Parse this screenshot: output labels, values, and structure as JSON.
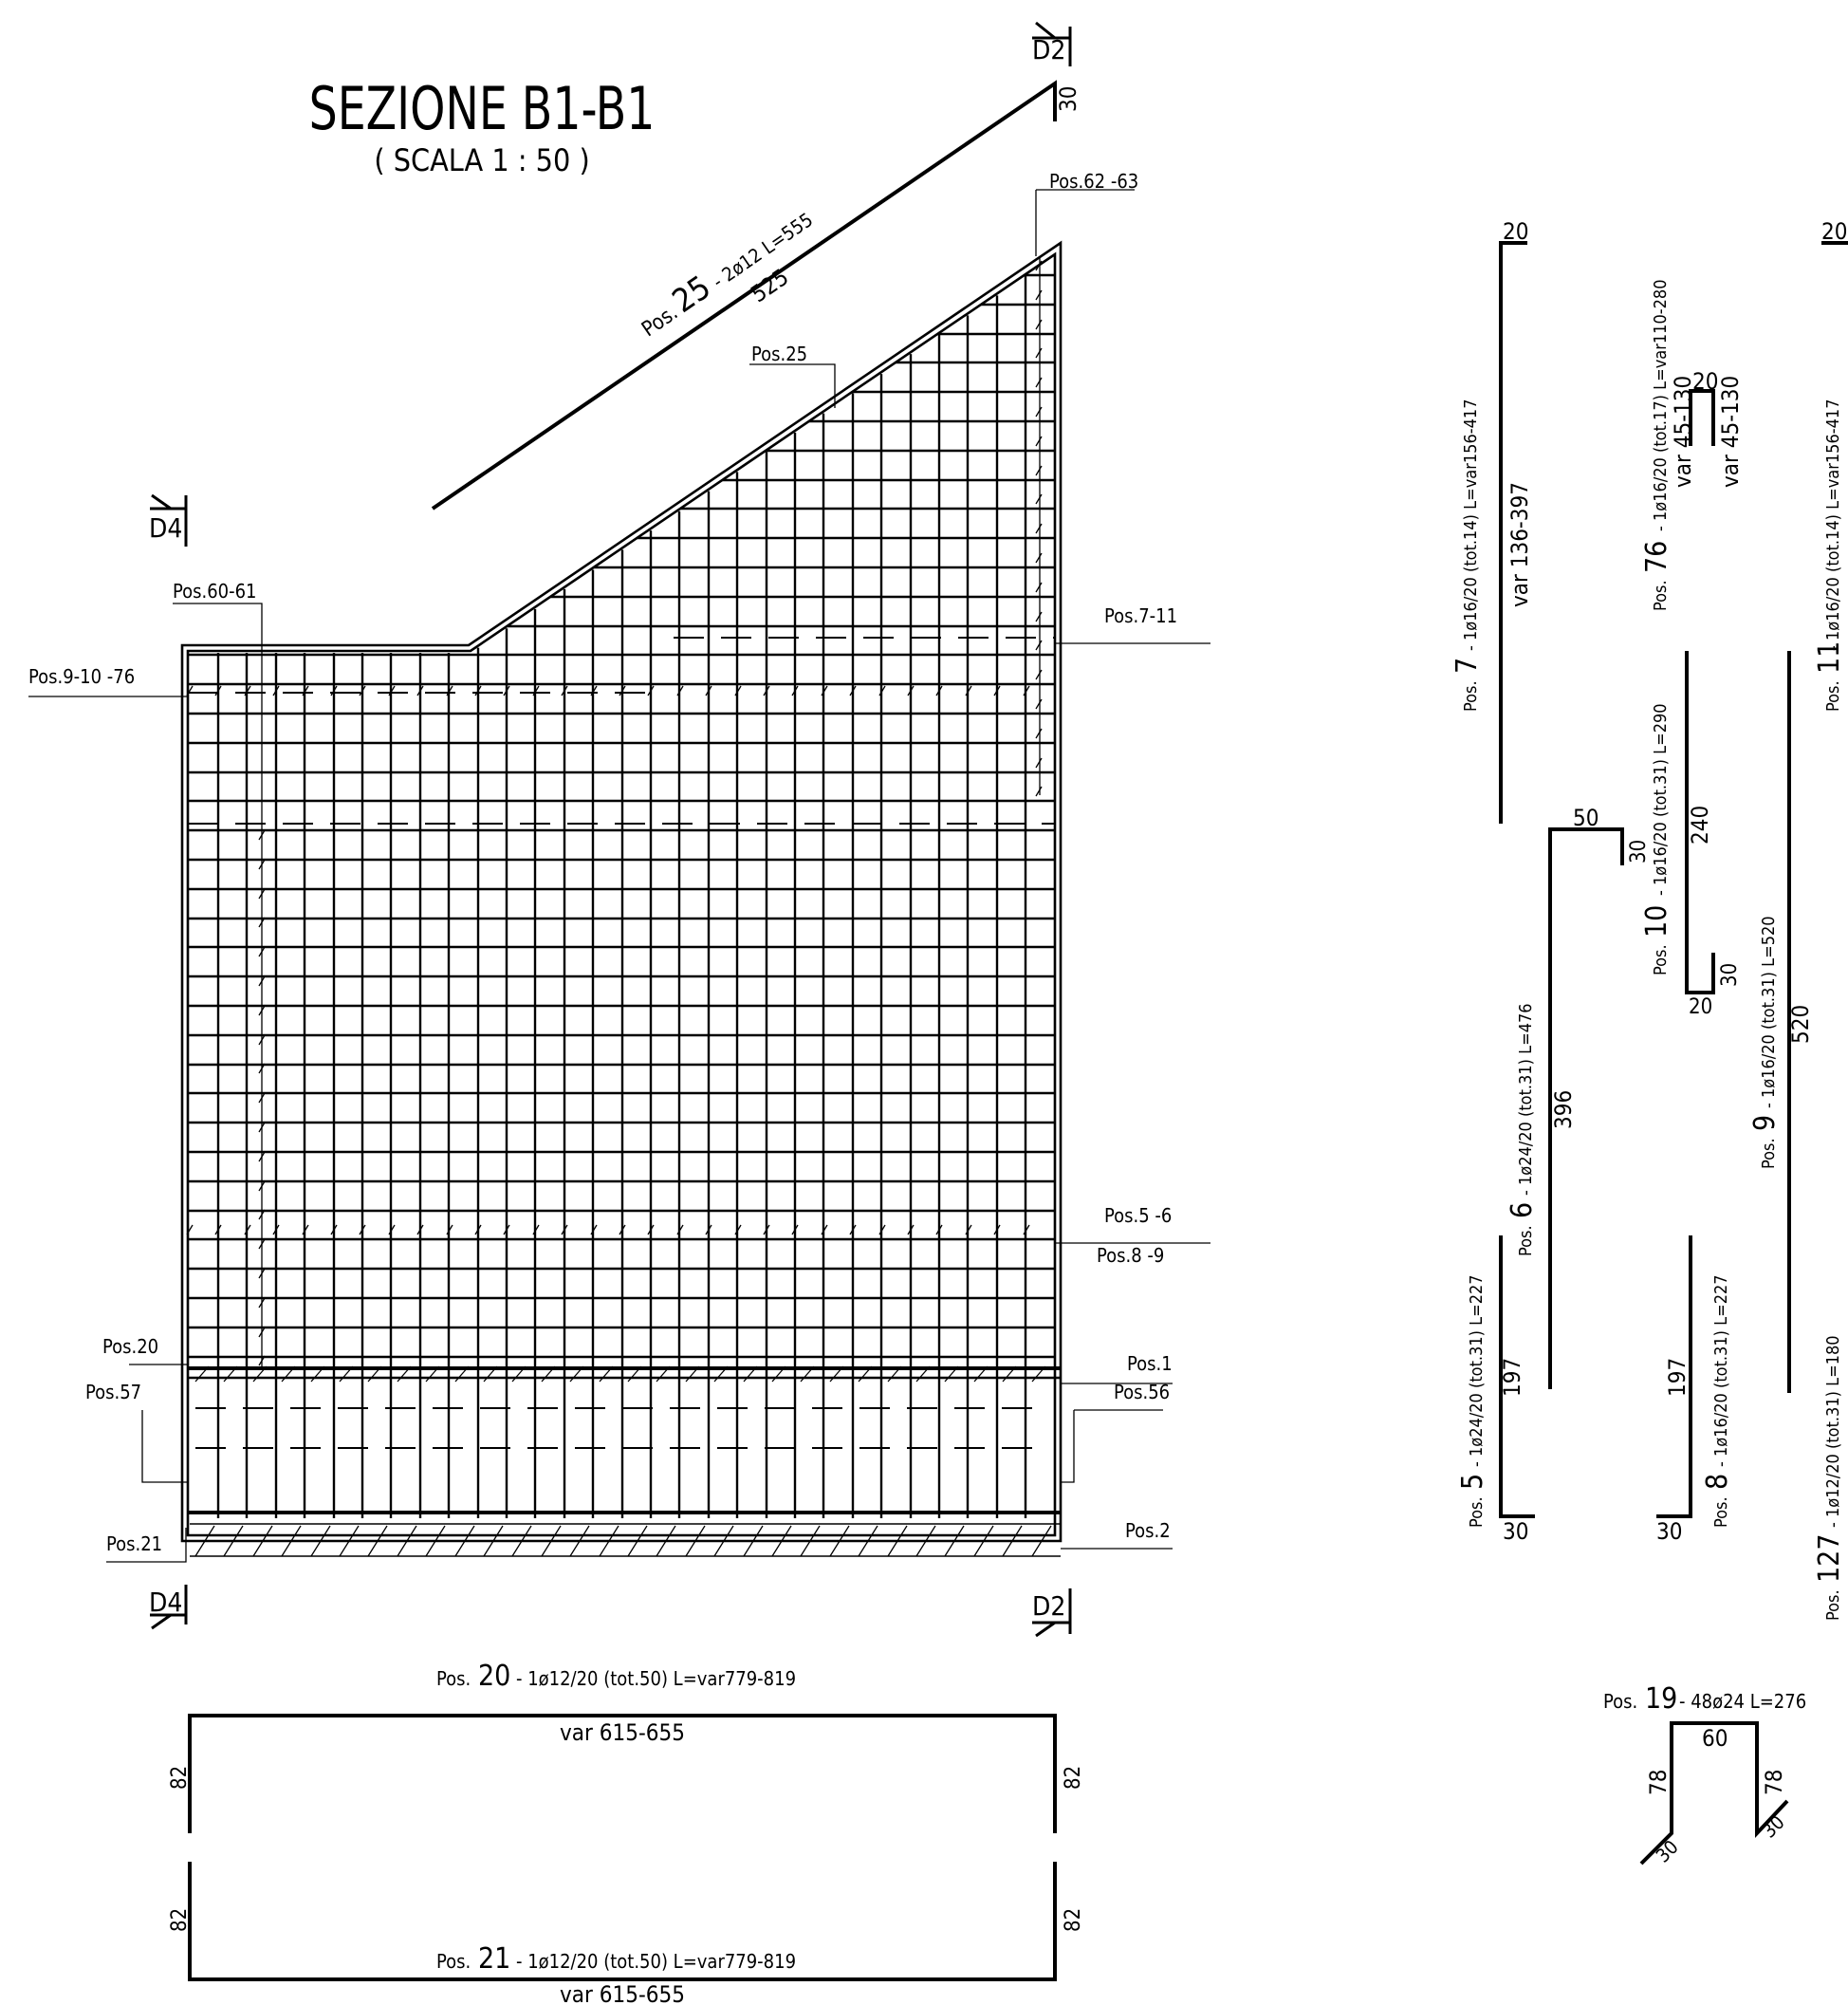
{
  "title": "SEZIONE B1-B1",
  "scale": "( SCALA 1 : 50 )",
  "section_marks": [
    "D2",
    "D4",
    "D4",
    "D2"
  ],
  "section": {
    "top_dim": "30",
    "pos25_prefix": "Pos.",
    "pos25_num": "25",
    "pos25_spec": "- 2ø12  L=555",
    "pos25_len": "525",
    "labels": {
      "pos62_63": "Pos.62 -63",
      "pos25": "Pos.25",
      "pos60_61": "Pos.60-61",
      "pos9_10_76": "Pos.9-10 -76",
      "pos7_11": "Pos.7-11",
      "pos5_6": "Pos.5 -6",
      "pos8_9": "Pos.8 -9",
      "pos20": "Pos.20",
      "pos1": "Pos.1",
      "pos57": "Pos.57",
      "pos56": "Pos.56",
      "pos21": "Pos.21",
      "pos2": "Pos.2"
    }
  },
  "bars": {
    "b20": {
      "prefix": "Pos.",
      "num": "20",
      "spec": "- 1ø12/20  (tot.50)   L=var779-819",
      "len": "var  615-655",
      "leg_left": "82",
      "leg_right": "82"
    },
    "b21": {
      "prefix": "Pos.",
      "num": "21",
      "spec": "- 1ø12/20  (tot.50)   L=var779-819",
      "len": "var  615-655",
      "leg_left": "82",
      "leg_right": "82"
    },
    "b7": {
      "prefix": "Pos.",
      "num": "7",
      "spec": "- 1ø16/20  (tot.14)   L=var156-417",
      "top": "20",
      "len": "var  136-397"
    },
    "b76": {
      "prefix": "Pos.",
      "num": "76",
      "spec": "- 1ø16/20  (tot.17)   L=var110-280",
      "top": "20",
      "leg_left": "var  45-130",
      "leg_right": "var  45-130"
    },
    "b11": {
      "prefix": "Pos.",
      "num": "11",
      "spec": "- 1ø16/20  (tot.14)   L=var156-417",
      "top": "20"
    },
    "b10": {
      "prefix": "Pos.",
      "num": "10",
      "spec": "- 1ø16/20  (tot.31)   L=290",
      "len": "240",
      "hook": "30",
      "foot": "20"
    },
    "b6": {
      "prefix": "Pos.",
      "num": "6",
      "spec": "- 1ø24/20  (tot.31)   L=476",
      "top": "50",
      "hook": "30",
      "len": "396"
    },
    "b9": {
      "prefix": "Pos.",
      "num": "9",
      "spec": "- 1ø16/20  (tot.31)   L=520",
      "len": "520"
    },
    "b5": {
      "prefix": "Pos.",
      "num": "5",
      "spec": "- 1ø24/20  (tot.31)   L=227",
      "len": "197",
      "foot": "30"
    },
    "b8": {
      "prefix": "Pos.",
      "num": "8",
      "spec": "- 1ø16/20  (tot.31)   L=227",
      "len": "197",
      "foot": "30"
    },
    "b127": {
      "prefix": "Pos.",
      "num": "127",
      "spec": "- 1ø12/20  (tot.31)   L=180"
    },
    "b19": {
      "prefix": "Pos.",
      "num": "19",
      "spec": "- 48ø24    L=276",
      "top": "60",
      "leg_left": "78",
      "leg_right": "78",
      "hook_left": "30",
      "hook_right": "30"
    }
  }
}
